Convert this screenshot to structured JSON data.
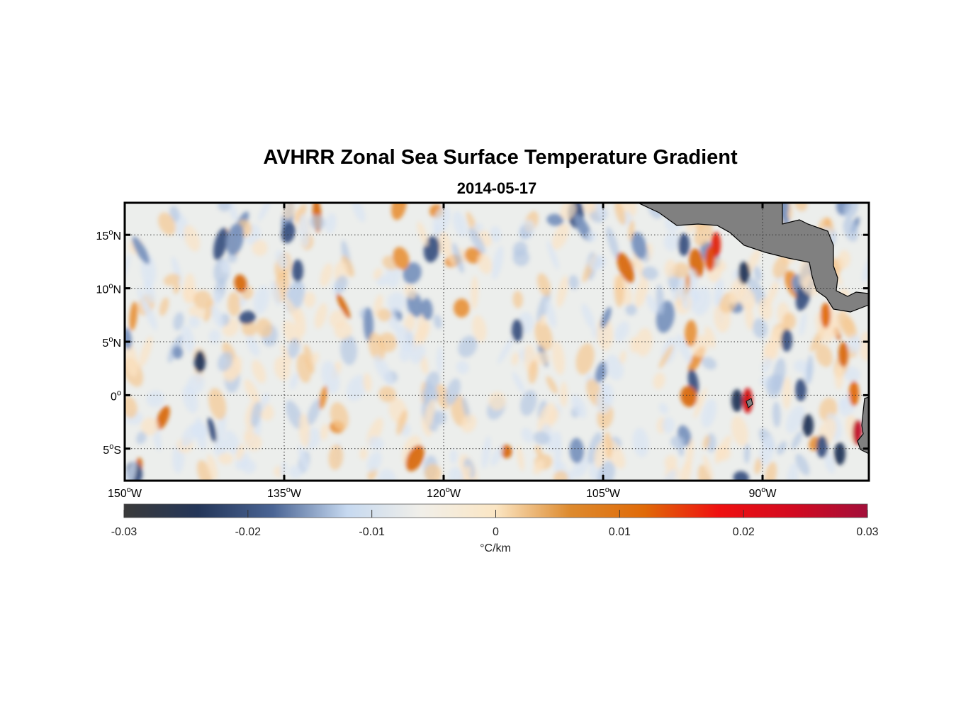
{
  "map": {
    "title": "AVHRR Zonal Sea Surface Temperature Gradient",
    "date": "2014-05-17",
    "lat_labels": [
      {
        "base": "15",
        "deg": "o",
        "hemi": "N",
        "lat": 15
      },
      {
        "base": "10",
        "deg": "o",
        "hemi": "N",
        "lat": 10
      },
      {
        "base": "5",
        "deg": "o",
        "hemi": "N",
        "lat": 5
      },
      {
        "base": "0",
        "deg": "o",
        "hemi": "",
        "lat": 0
      },
      {
        "base": "5",
        "deg": "o",
        "hemi": "S",
        "lat": -5
      }
    ],
    "lon_labels": [
      {
        "base": "150",
        "deg": "o",
        "hemi": "W",
        "lon": -150
      },
      {
        "base": "135",
        "deg": "o",
        "hemi": "W",
        "lon": -135
      },
      {
        "base": "120",
        "deg": "o",
        "hemi": "W",
        "lon": -120
      },
      {
        "base": "105",
        "deg": "o",
        "hemi": "W",
        "lon": -105
      },
      {
        "base": "90",
        "deg": "o",
        "hemi": "W",
        "lon": -90
      }
    ],
    "extent": {
      "lon_min": -150,
      "lon_max": -80,
      "lat_min": -8,
      "lat_max": 18
    },
    "land_color": "#808080"
  },
  "colorbar": {
    "ticks": [
      "-0.03",
      "-0.02",
      "-0.01",
      "0",
      "0.01",
      "0.02",
      "0.03"
    ],
    "unit_label": "°C/km",
    "range": [
      -0.03,
      0.03
    ],
    "colors": [
      "#3a3a3a",
      "#243659",
      "#4a6494",
      "#c6d9f0",
      "#f1efe9",
      "#fbe6c4",
      "#dd8a2e",
      "#e06a08",
      "#ef1010",
      "#d20a20",
      "#a30f3a"
    ]
  }
}
